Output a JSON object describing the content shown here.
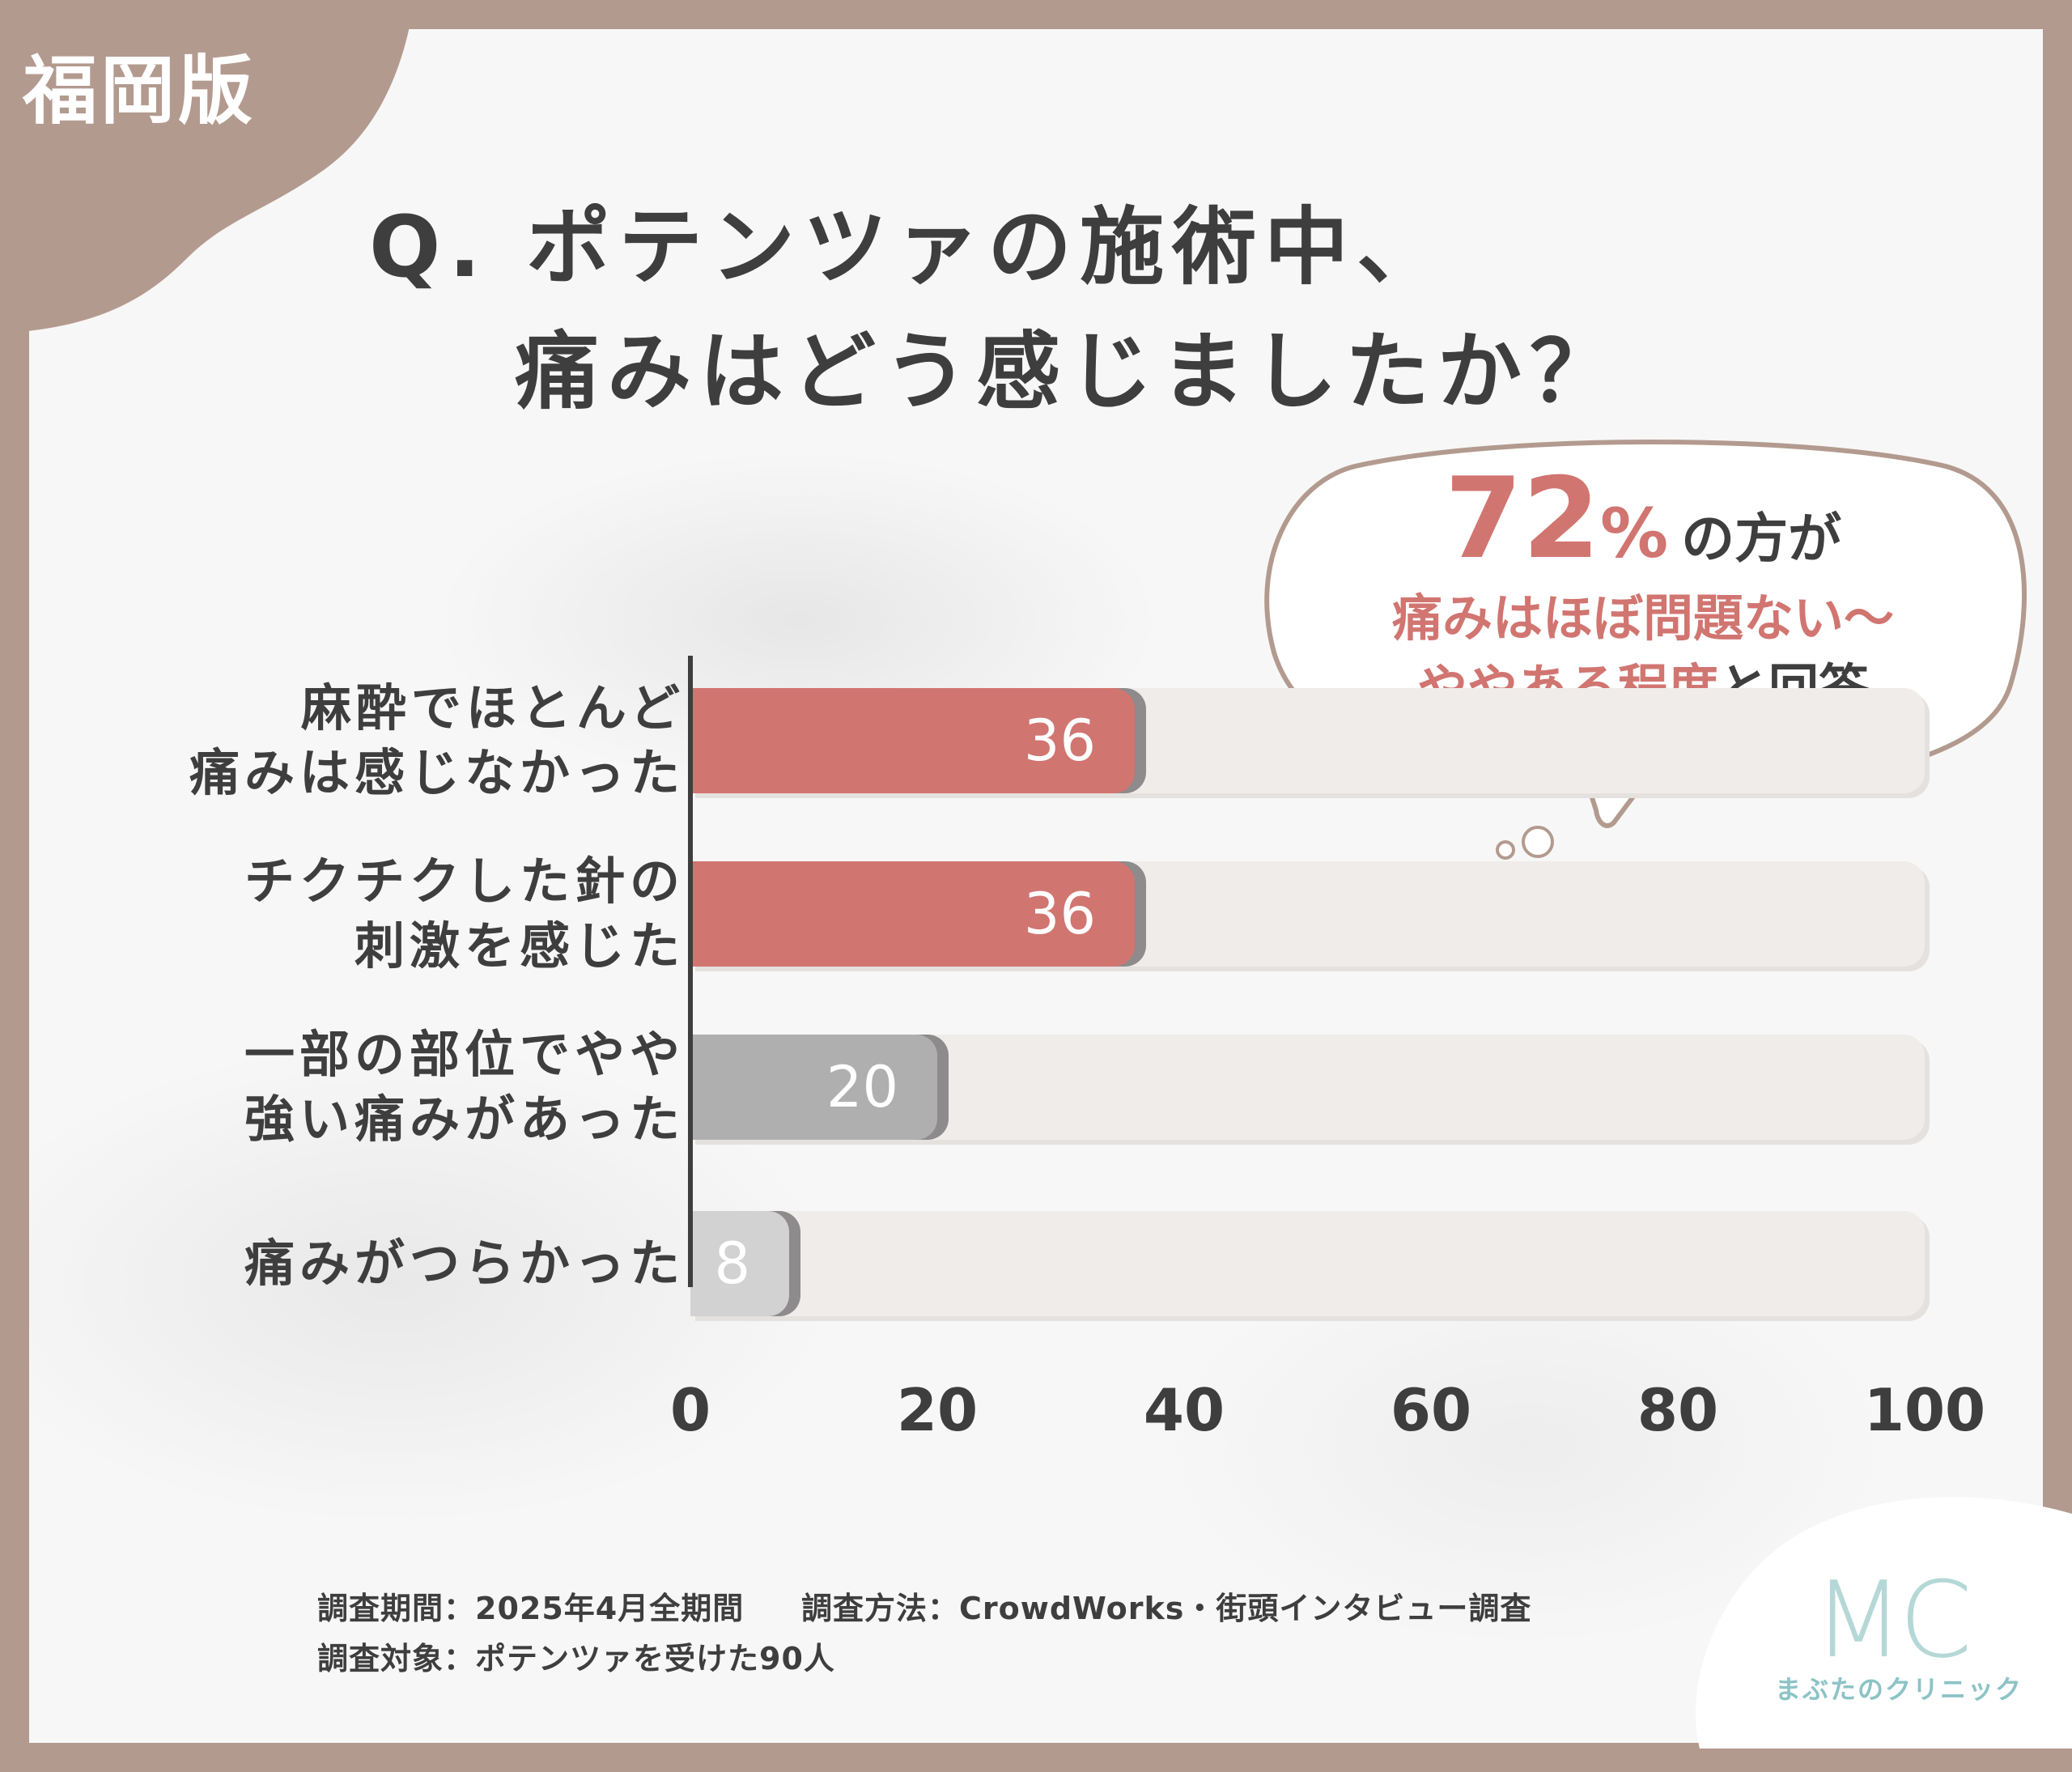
{
  "region_label": "福岡版",
  "title": {
    "line1": "Q. ポテンツァの施術中、",
    "line2": "痛みはどう感じましたか？"
  },
  "callout": {
    "percent": "72",
    "percent_sign": "%",
    "suffix": "の方が",
    "line2": "痛みはほぼ問題ない〜",
    "line3_pink": "ややある程度",
    "line3_dark": "と回答"
  },
  "colors": {
    "accent": "#d17571",
    "gray_bar": "#afafaf",
    "light_bar": "#d2d2d2",
    "frame": "#b39a8f",
    "text": "#3e3e3e"
  },
  "chart_data": {
    "type": "bar",
    "orientation": "horizontal",
    "categories": [
      [
        "麻酔でほとんど",
        "痛みは感じなかった"
      ],
      [
        "チクチクした針の",
        "刺激を感じた"
      ],
      [
        "一部の部位でやや",
        "強い痛みがあった"
      ],
      [
        "痛みがつらかった"
      ]
    ],
    "values": [
      36,
      36,
      20,
      8
    ],
    "data_labels": [
      "36",
      "36",
      "20",
      "8"
    ],
    "bar_colors": [
      "#d17571",
      "#d17571",
      "#afafaf",
      "#d2d2d2"
    ],
    "xlim": [
      0,
      100
    ],
    "x_ticks": [
      "0",
      "20",
      "40",
      "60",
      "80",
      "100"
    ],
    "grid": false,
    "legend": "none"
  },
  "footnotes": {
    "period": "調査期間：2025年4月全期間",
    "method": "調査方法：CrowdWorks・街頭インタビュー調査",
    "target": "調査対象：ポテンツァを受けた90人"
  },
  "logo": {
    "mark": "MC",
    "text": "まぶたのクリニック"
  }
}
